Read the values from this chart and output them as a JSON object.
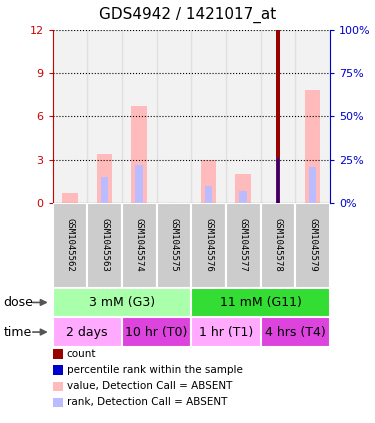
{
  "title": "GDS4942 / 1421017_at",
  "samples": [
    "GSM1045562",
    "GSM1045563",
    "GSM1045574",
    "GSM1045575",
    "GSM1045576",
    "GSM1045577",
    "GSM1045578",
    "GSM1045579"
  ],
  "value_absent": [
    0.7,
    3.4,
    6.7,
    0.0,
    3.0,
    2.0,
    0.0,
    7.8
  ],
  "rank_absent": [
    0.0,
    1.8,
    2.6,
    0.0,
    1.2,
    0.8,
    0.0,
    2.5
  ],
  "count": [
    0,
    0,
    0,
    0,
    0,
    0,
    12,
    0
  ],
  "percentile": [
    0,
    0,
    0,
    0,
    0,
    0,
    26,
    0
  ],
  "ylim_left": [
    0,
    12
  ],
  "ylim_right": [
    0,
    100
  ],
  "yticks_left": [
    0,
    3,
    6,
    9,
    12
  ],
  "yticks_right": [
    0,
    25,
    50,
    75,
    100
  ],
  "dose_groups": [
    {
      "label": "3 mM (G3)",
      "start": 0,
      "end": 4,
      "color": "#aaffaa"
    },
    {
      "label": "11 mM (G11)",
      "start": 4,
      "end": 8,
      "color": "#33dd33"
    }
  ],
  "time_groups": [
    {
      "label": "2 days",
      "start": 0,
      "end": 2,
      "color": "#ffaaff"
    },
    {
      "label": "10 hr (T0)",
      "start": 2,
      "end": 4,
      "color": "#dd44dd"
    },
    {
      "label": "1 hr (T1)",
      "start": 4,
      "end": 6,
      "color": "#ffaaff"
    },
    {
      "label": "4 hrs (T4)",
      "start": 6,
      "end": 8,
      "color": "#dd44dd"
    }
  ],
  "color_count": "#990000",
  "color_percentile": "#0000cc",
  "color_value_absent": "#ffbbbb",
  "color_rank_absent": "#bbbbff",
  "legend_items": [
    {
      "label": "count",
      "color": "#990000"
    },
    {
      "label": "percentile rank within the sample",
      "color": "#0000cc"
    },
    {
      "label": "value, Detection Call = ABSENT",
      "color": "#ffbbbb"
    },
    {
      "label": "rank, Detection Call = ABSENT",
      "color": "#bbbbff"
    }
  ],
  "background_color": "#ffffff",
  "left_axis_color": "#cc0000",
  "right_axis_color": "#0000cc",
  "sample_box_color": "#cccccc"
}
